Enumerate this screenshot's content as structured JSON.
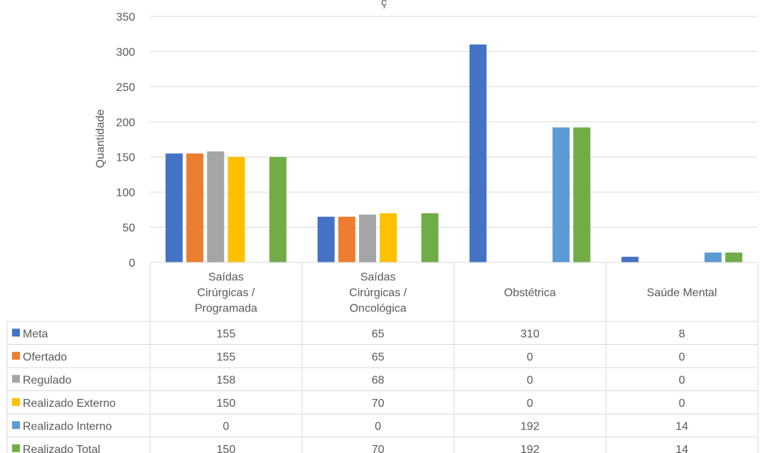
{
  "chart_data": {
    "type": "bar",
    "title": "ç",
    "ylabel": "Quantidade",
    "xlabel": "",
    "ylim": [
      0,
      350
    ],
    "yticks": [
      0,
      50,
      100,
      150,
      200,
      250,
      300,
      350
    ],
    "grid": true,
    "legend": "data-table",
    "categories": [
      [
        "Saídas",
        "Cirúrgicas /",
        "Programada"
      ],
      [
        "Saídas",
        "Cirúrgicas /",
        "Oncológica"
      ],
      [
        "Obstétrica"
      ],
      [
        "Saúde Mental"
      ]
    ],
    "series": [
      {
        "name": "Meta",
        "color": "#4472C4",
        "values": [
          155,
          65,
          310,
          8
        ]
      },
      {
        "name": "Ofertado",
        "color": "#ED7D31",
        "values": [
          155,
          65,
          0,
          0
        ]
      },
      {
        "name": "Regulado",
        "color": "#A5A5A5",
        "values": [
          158,
          68,
          0,
          0
        ]
      },
      {
        "name": "Realizado Externo",
        "color": "#FFC000",
        "values": [
          150,
          70,
          0,
          0
        ]
      },
      {
        "name": "Realizado Interno",
        "color": "#5B9BD5",
        "values": [
          0,
          0,
          192,
          14
        ]
      },
      {
        "name": "Realizado Total",
        "color": "#70AD47",
        "values": [
          150,
          70,
          192,
          14
        ]
      }
    ]
  }
}
